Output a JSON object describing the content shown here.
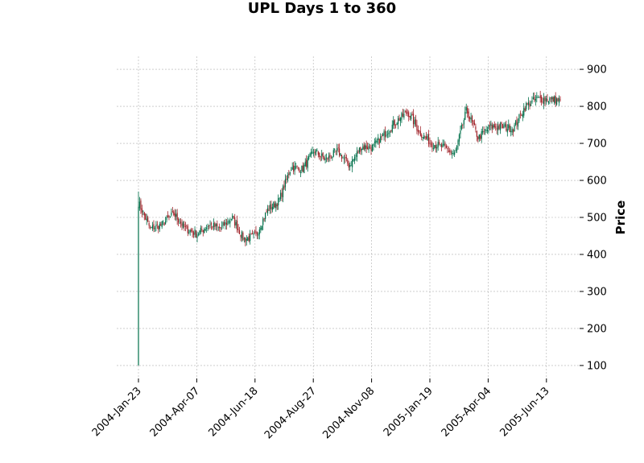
{
  "chart_data": {
    "type": "candlestick",
    "title": "UPL Days 1 to 360",
    "xlabel": "",
    "ylabel": "Price",
    "x_tick_labels": [
      "2004-Jan-23",
      "2004-Apr-07",
      "2004-Jun-18",
      "2004-Aug-27",
      "2004-Nov-08",
      "2005-Jan-19",
      "2005-Apr-04",
      "2005-Jun-13"
    ],
    "y_ticks": [
      100,
      200,
      300,
      400,
      500,
      600,
      700,
      800,
      900
    ],
    "ylim": [
      65,
      935
    ],
    "grid": true,
    "y_axis_side": "right",
    "colors": {
      "up": "#00704a",
      "down": "#a02128",
      "grid": "#b0b0b0"
    },
    "series": [
      {
        "x": [
          "2004-Jan-23",
          "2004-Feb-06",
          "2004-Feb-20",
          "2004-Mar-05",
          "2004-Mar-19",
          "2004-Apr-07",
          "2004-Apr-21",
          "2004-May-05",
          "2004-May-19",
          "2004-Jun-02",
          "2004-Jun-18",
          "2004-Jul-02",
          "2004-Jul-16",
          "2004-Jul-30",
          "2004-Aug-13",
          "2004-Aug-27",
          "2004-Sep-10",
          "2004-Sep-24",
          "2004-Oct-08",
          "2004-Oct-22",
          "2004-Nov-08",
          "2004-Nov-22",
          "2004-Dec-06",
          "2004-Dec-20",
          "2005-Jan-05",
          "2005-Jan-19",
          "2005-Feb-02",
          "2005-Feb-16",
          "2005-Mar-02",
          "2005-Mar-16",
          "2005-Apr-04",
          "2005-Apr-18",
          "2005-May-02",
          "2005-May-16",
          "2005-May-30",
          "2005-Jun-13",
          "2005-Jun-24"
        ],
        "close": [
          540,
          470,
          480,
          510,
          470,
          455,
          480,
          470,
          500,
          440,
          450,
          520,
          545,
          635,
          630,
          680,
          655,
          680,
          640,
          690,
          690,
          725,
          760,
          785,
          730,
          700,
          690,
          670,
          790,
          715,
          745,
          745,
          740,
          800,
          820,
          820,
          815
        ]
      }
    ]
  }
}
